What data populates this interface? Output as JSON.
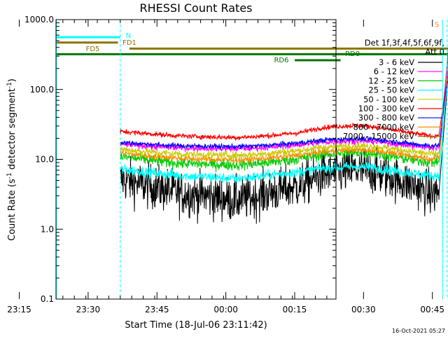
{
  "chart_data": {
    "type": "line",
    "title": "RHESSI Count Rates",
    "xlabel": "Start Time (18-Jul-06 23:11:42)",
    "ylabel_main": "Count Rate (s",
    "ylabel_sup1": "-1",
    "ylabel_mid": " detector segment",
    "ylabel_sup2": "-1",
    "ylabel_end": ")",
    "y_scale": "log",
    "ylim": [
      0.1,
      1000
    ],
    "xlim_minutes": [
      -3,
      58
    ],
    "grid": false,
    "x_ticks": [
      {
        "t": 3,
        "label": "23:15"
      },
      {
        "t": 18,
        "label": "23:30"
      },
      {
        "t": 33,
        "label": "23:45"
      },
      {
        "t": 48,
        "label": "00:00"
      },
      {
        "t": 63,
        "label": "00:15"
      },
      {
        "t": 78,
        "label": "00:30"
      },
      {
        "t": 93,
        "label": "00:45"
      }
    ],
    "x_tick_times": [
      3,
      18,
      33,
      48,
      63,
      78,
      93
    ],
    "y_ticks": [
      {
        "v": 0.1,
        "label": "0.1"
      },
      {
        "v": 1,
        "label": "1.0"
      },
      {
        "v": 10,
        "label": "10.0"
      },
      {
        "v": 100,
        "label": "100.0"
      },
      {
        "v": 1000,
        "label": "1000.0"
      }
    ],
    "legend": {
      "position": "right",
      "header1": "Det 1f,3f,4f,5f,6f,9f,",
      "header2": "Att 0",
      "entries": [
        {
          "label": "3 - 6 keV",
          "color": "#000000"
        },
        {
          "label": "6 - 12 keV",
          "color": "#ff00ff"
        },
        {
          "label": "12 - 25 keV",
          "color": "#00cc00"
        },
        {
          "label": "25 - 50 keV",
          "color": "#00ffff"
        },
        {
          "label": "50 - 100 keV",
          "color": "#cccc00"
        },
        {
          "label": "100 - 300 keV",
          "color": "#ff0000"
        },
        {
          "label": "300 - 800 keV",
          "color": "#0000ff"
        },
        {
          "label": "800 - 7000 keV",
          "color": "#ff8c00"
        },
        {
          "label": "7000 - 15000 keV",
          "color": "#8b7500"
        }
      ]
    },
    "series": [
      {
        "name": "3 - 6 keV",
        "color": "#000000",
        "noise": 0.35,
        "t": [
          11,
          15,
          20,
          25,
          30,
          36,
          40,
          44,
          50,
          55,
          58,
          62,
          66,
          70,
          75,
          79,
          80.5,
          82.5
        ],
        "v": [
          5.2,
          4.5,
          3.8,
          3.2,
          3.0,
          2.6,
          2.9,
          3.4,
          4.2,
          6.0,
          6.3,
          7.0,
          6.6,
          5.6,
          4.2,
          3.2,
          3.5,
          180
        ]
      },
      {
        "name": "25 - 50 keV",
        "color": "#00ffff",
        "noise": 0.08,
        "t": [
          11,
          15,
          20,
          25,
          30,
          36,
          40,
          44,
          50,
          55,
          58,
          62,
          66,
          70,
          75,
          79,
          80.5,
          82.5
        ],
        "v": [
          7.2,
          6.8,
          6.2,
          5.8,
          5.6,
          5.3,
          5.6,
          6.0,
          6.6,
          7.5,
          7.6,
          7.9,
          7.6,
          7.0,
          6.3,
          5.8,
          6.0,
          200
        ]
      },
      {
        "name": "12 - 25 keV",
        "color": "#00cc00",
        "noise": 0.09,
        "t": [
          11,
          15,
          20,
          25,
          30,
          36,
          40,
          44,
          50,
          55,
          58,
          62,
          66,
          70,
          75,
          79,
          80.5,
          82.5
        ],
        "v": [
          11.0,
          10.2,
          9.3,
          8.7,
          8.5,
          8.3,
          8.6,
          9.1,
          10.2,
          11.8,
          12.0,
          12.5,
          12.2,
          11.0,
          9.8,
          9.0,
          9.5,
          420
        ]
      },
      {
        "name": "800 - 7000 keV",
        "color": "#ff8c00",
        "noise": 0.05,
        "t": [
          11,
          15,
          20,
          25,
          30,
          36,
          40,
          44,
          50,
          55,
          58,
          62,
          66,
          70,
          75,
          79,
          80.5,
          82.5
        ],
        "v": [
          12.5,
          11.5,
          10.8,
          10.3,
          10.0,
          9.8,
          10.0,
          10.5,
          11.5,
          12.8,
          13.2,
          13.7,
          13.3,
          12.5,
          11.0,
          10.3,
          10.8,
          260
        ]
      },
      {
        "name": "50 - 100 keV",
        "color": "#cccc00",
        "noise": 0.06,
        "t": [
          11,
          15,
          20,
          25,
          30,
          36,
          40,
          44,
          50,
          55,
          58,
          62,
          66,
          70,
          75,
          79,
          80.5,
          82.5
        ],
        "v": [
          14.0,
          13.2,
          12.4,
          11.9,
          11.6,
          11.4,
          11.7,
          12.3,
          13.4,
          14.8,
          15.2,
          15.7,
          15.3,
          14.4,
          12.8,
          11.9,
          12.4,
          300
        ]
      },
      {
        "name": "6 - 12 keV",
        "color": "#ff00ff",
        "noise": 0.05,
        "t": [
          11,
          15,
          20,
          25,
          30,
          36,
          40,
          44,
          50,
          55,
          58,
          62,
          66,
          70,
          75,
          79,
          80.5,
          82.5
        ],
        "v": [
          16.5,
          15.8,
          15.0,
          14.6,
          14.4,
          14.2,
          14.5,
          15.0,
          16.2,
          17.5,
          18.0,
          18.5,
          18.1,
          17.0,
          15.5,
          14.6,
          15.0,
          330
        ]
      },
      {
        "name": "300 - 800 keV",
        "color": "#0000ff",
        "noise": 0.04,
        "t": [
          11,
          15,
          20,
          25,
          30,
          36,
          40,
          44,
          50,
          55,
          58,
          62,
          66,
          70,
          75,
          79,
          80.5,
          82.5
        ],
        "v": [
          17.5,
          16.8,
          16.0,
          15.6,
          15.4,
          15.2,
          15.5,
          16.0,
          17.2,
          18.8,
          19.3,
          19.8,
          19.4,
          18.2,
          16.5,
          15.6,
          16.0,
          200
        ]
      },
      {
        "name": "100 - 300 keV",
        "color": "#ff0000",
        "noise": 0.04,
        "t": [
          11,
          15,
          20,
          25,
          30,
          36,
          40,
          44,
          50,
          55,
          58,
          62,
          66,
          70,
          75,
          79,
          80.5,
          82.5
        ],
        "v": [
          25.0,
          24.0,
          22.5,
          21.5,
          21.0,
          20.5,
          21.0,
          22.0,
          24.0,
          28.5,
          29.5,
          30.5,
          29.5,
          26.5,
          23.5,
          21.5,
          22.0,
          190
        ]
      }
    ],
    "flag_bars": [
      {
        "label": "N",
        "color": "#00ffff",
        "t0": -3,
        "t1": 11,
        "v": 560,
        "label_t": 12.2,
        "label_v": 600
      },
      {
        "label": "",
        "color": "#00ffff",
        "t0": 82.5,
        "t1": 95,
        "v": 560
      },
      {
        "label": "FD1",
        "color": "#8b7500",
        "t0": -3,
        "t1": 10.5,
        "v": 470,
        "label_t": 11.5,
        "label_v": 480
      },
      {
        "label": "FD5",
        "color": "#8b7500",
        "t0": 13,
        "t1": 95,
        "v": 385,
        "label_t": 3.5,
        "label_v": 390
      },
      {
        "label": "",
        "color": "#007700",
        "t0": -3,
        "t1": 95,
        "v": 320
      },
      {
        "label": "RD0",
        "color": "#007700",
        "t0": 57,
        "t1": 67.5,
        "v": 320,
        "label_t": 60,
        "label_v": 330
      },
      {
        "label": "RD6",
        "color": "#007700",
        "t0": 49,
        "t1": 59,
        "v": 262,
        "label_t": 44.5,
        "label_v": 268
      },
      {
        "label": "S",
        "color": "#ff8c00",
        "t0": 84,
        "t1": 85.5,
        "v": 800,
        "label_t": 79.5,
        "label_v": 860
      }
    ],
    "vlines": [
      {
        "t": -2.9,
        "color": "#00ffff",
        "dash": false
      },
      {
        "t": 11,
        "color": "#00ffff",
        "dash": true
      },
      {
        "t": 81.2,
        "color": "#00ffff",
        "dash": false
      },
      {
        "t": 82.2,
        "color": "#00ffff",
        "dash": true
      },
      {
        "t": 84.0,
        "color": "#ff8c00",
        "dash": true
      },
      {
        "t": 85.3,
        "color": "#ff8c00",
        "dash": true
      },
      {
        "t": 94.3,
        "color": "#00ffff",
        "dash": true
      }
    ],
    "timestamp": "16-Oct-2021 05:27"
  }
}
